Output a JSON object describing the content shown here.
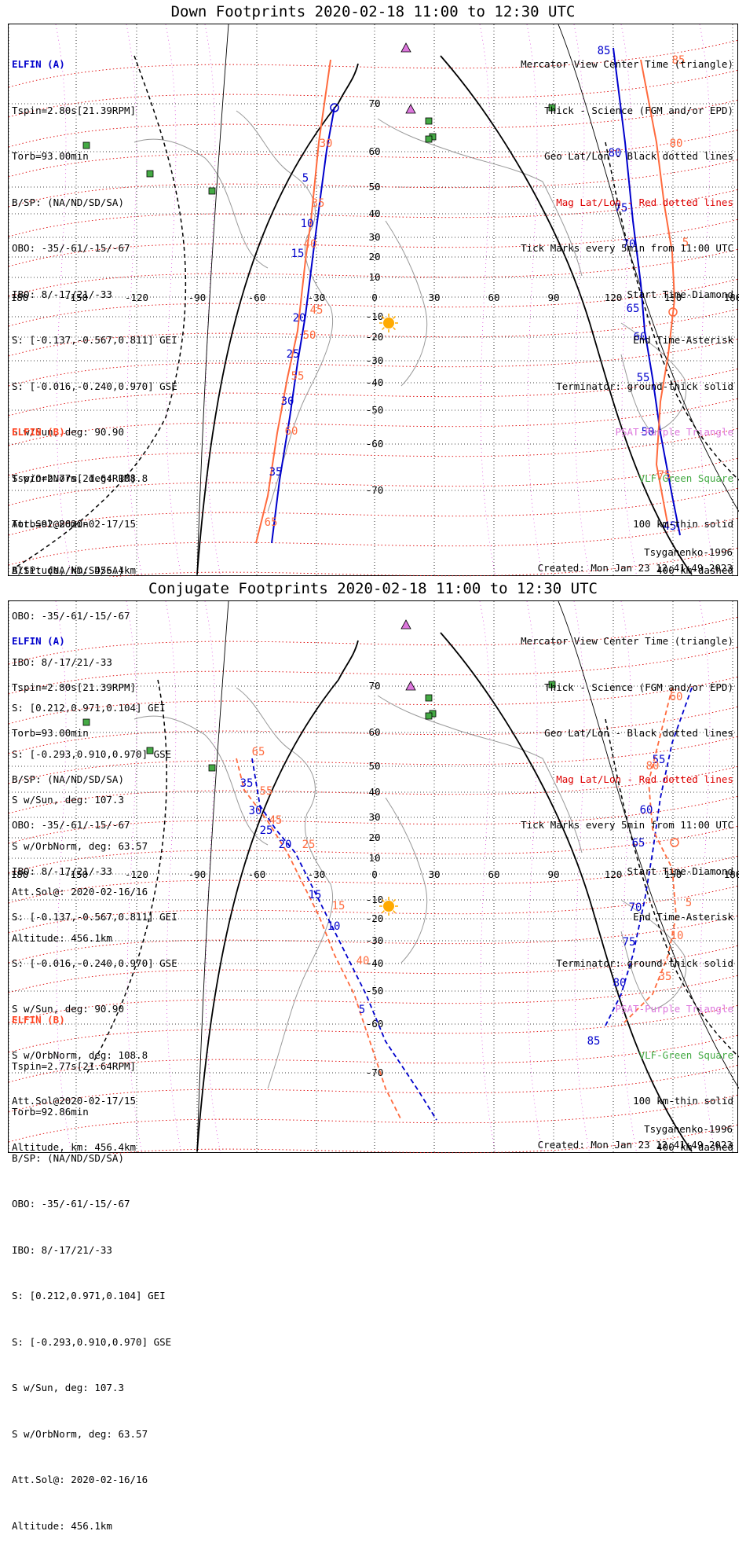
{
  "colors": {
    "elfin_a": "#0000cc",
    "elfin_b": "#ff6a3d",
    "mag_grid": "#dd0000",
    "geo_grid": "#000000",
    "terminator": "#000000",
    "coastline": "#999999",
    "psat": "#dd77dd",
    "vlf": "#44aa44",
    "sun": "#ffaa00"
  },
  "axis": {
    "lon_labels": [
      "180",
      "-150",
      "-120",
      "-90",
      "-60",
      "-30",
      "0",
      "30",
      "60",
      "90",
      "120",
      "150",
      "180"
    ],
    "lat_labels": [
      "70",
      "60",
      "50",
      "40",
      "30",
      "20",
      "10",
      "-10",
      "-20",
      "-30",
      "-40",
      "-50",
      "-60",
      "-70"
    ]
  },
  "legend": {
    "line1": "Mercator View Center Time (triangle)",
    "line2": "Thick - Science (FGM and/or EPD)",
    "line3": "Geo Lat/Lon - Black dotted lines",
    "line4": "Mag Lat/Lon - Red dotted lines",
    "line5": "Tick Marks every 5min from 11:00 UTC",
    "line6": "Start Time-Diamond",
    "line7": "End Time-Asterisk",
    "line8": "Terminator: ground-thick solid",
    "line9": "PSAT-Purple Triangle",
    "line10": "VLF-Green Square",
    "line11": "100 km-thin solid",
    "line12": "400 km-dashed"
  },
  "elfin_a_info": {
    "name": "ELFIN (A)",
    "tspin": "Tspin=2.80s[21.39RPM]",
    "torb": "Torb=93.00min",
    "bsp": "B/SP: (NA/ND/SD/SA)",
    "obo": "OBO: -35/-61/-15/-67",
    "ibo": "IBO: 8/-17/21/-33",
    "s_gei": "S: [-0.137,-0.567,0.811] GEI",
    "s_gse": "S: [-0.016,-0.240,0.970] GSE",
    "s_sun": "S w/Sun, deg: 90.90",
    "s_orb": "S w/OrbNorm, deg: 108.8",
    "att": "Att.Sol@2020-02-17/15",
    "alt": "Altitude, km: 456.4km"
  },
  "elfin_b_info": {
    "name": "ELFIN (B)",
    "tspin": "Tspin=2.77s[21.64RPM]",
    "torb": "Torb=92.86min",
    "bsp": "B/SP: (NA/ND/SD/SA)",
    "obo": "OBO: -35/-61/-15/-67",
    "ibo": "IBO: 8/-17/21/-33",
    "s_gei": "S: [0.212,0.971,0.104] GEI",
    "s_gse": "S: [-0.293,0.910,0.970] GSE",
    "s_sun": "S w/Sun, deg: 107.3",
    "s_orb": "S w/OrbNorm, deg: 63.57",
    "att": "Att.Sol@: 2020-02-16/16",
    "alt": "Altitude: 456.1km"
  },
  "footer": {
    "model": "Tsyganenko-1996",
    "created": "Created: Mon Jan 23 12:41:49 2023"
  },
  "panels": [
    {
      "title": "Down Footprints 2020-02-18 11:00 to 12:30 UTC",
      "a_labels": [
        "5",
        "10",
        "15",
        "20",
        "25",
        "30",
        "35",
        "85",
        "80",
        "75",
        "70",
        "65",
        "60",
        "55",
        "50",
        "45"
      ],
      "b_labels": [
        "30",
        "35",
        "40",
        "45",
        "50",
        "55",
        "60",
        "65",
        "5",
        "85",
        "80",
        "75"
      ]
    },
    {
      "title": "Conjugate Footprints 2020-02-18 11:00 to 12:30 UTC",
      "a_labels": [
        "5",
        "10",
        "15",
        "20",
        "25",
        "30",
        "35",
        "85",
        "80",
        "75",
        "70",
        "65",
        "60",
        "55"
      ],
      "b_labels": [
        "5",
        "10",
        "15",
        "25",
        "35",
        "40",
        "45",
        "55",
        "60",
        "65",
        "80"
      ]
    }
  ]
}
